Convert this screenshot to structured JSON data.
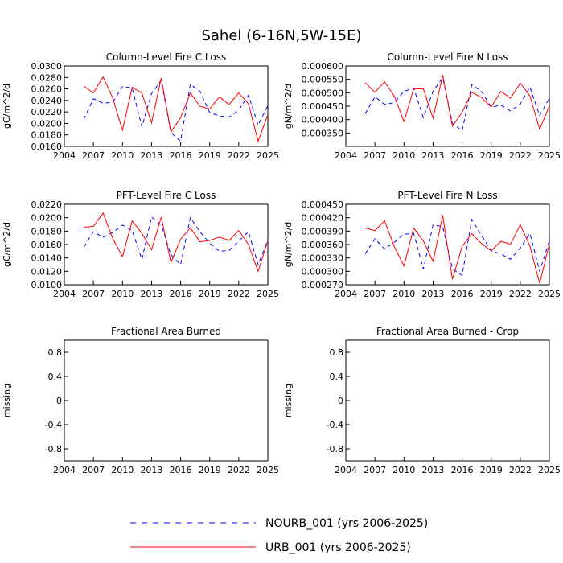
{
  "page_title": "Sahel (6-16N,5W-15E)",
  "legend": {
    "items": [
      {
        "label": "NOURB_001 (yrs 2006-2025)",
        "color": "#0000ff",
        "dash": "dashed"
      },
      {
        "label": "URB_001 (yrs 2006-2025)",
        "color": "#ff0000",
        "dash": "solid"
      }
    ]
  },
  "chart_data": [
    {
      "type": "line",
      "title": "Column-Level Fire C Loss",
      "ylabel": "gC/m^2/d",
      "xlabel": "",
      "xlim": [
        2004,
        2025
      ],
      "ylim": [
        0.016,
        0.03
      ],
      "xticks": [
        "2004",
        "2007",
        "2010",
        "2013",
        "2016",
        "2019",
        "2022",
        "2025"
      ],
      "yticks": [
        "0.0160",
        "0.0180",
        "0.0200",
        "0.0220",
        "0.0240",
        "0.0260",
        "0.0280",
        "0.0300"
      ],
      "x": [
        2006,
        2007,
        2008,
        2009,
        2010,
        2011,
        2012,
        2013,
        2014,
        2015,
        2016,
        2017,
        2018,
        2019,
        2020,
        2021,
        2022,
        2023,
        2024,
        2025
      ],
      "series": [
        {
          "name": "NOURB_001",
          "values": [
            0.0207,
            0.0243,
            0.0235,
            0.0237,
            0.0264,
            0.0262,
            0.0194,
            0.0252,
            0.0275,
            0.0184,
            0.0169,
            0.0268,
            0.0256,
            0.0219,
            0.0213,
            0.0211,
            0.0223,
            0.0249,
            0.0197,
            0.0231
          ]
        },
        {
          "name": "URB_001",
          "values": [
            0.0265,
            0.0253,
            0.0281,
            0.0244,
            0.0188,
            0.0263,
            0.0253,
            0.0201,
            0.0279,
            0.0185,
            0.021,
            0.0253,
            0.023,
            0.0225,
            0.0246,
            0.0233,
            0.0253,
            0.0234,
            0.0169,
            0.0215
          ]
        }
      ]
    },
    {
      "type": "line",
      "title": "Column-Level Fire N Loss",
      "ylabel": "gN/m^2/d",
      "xlabel": "",
      "xlim": [
        2004,
        2025
      ],
      "ylim": [
        0.0003,
        0.0006
      ],
      "xticks": [
        "2004",
        "2007",
        "2010",
        "2013",
        "2016",
        "2019",
        "2022",
        "2025"
      ],
      "yticks": [
        "0.000350",
        "0.000400",
        "0.000450",
        "0.000500",
        "0.000550",
        "0.000600"
      ],
      "x": [
        2006,
        2007,
        2008,
        2009,
        2010,
        2011,
        2012,
        2013,
        2014,
        2015,
        2016,
        2017,
        2018,
        2019,
        2020,
        2021,
        2022,
        2023,
        2024,
        2025
      ],
      "series": [
        {
          "name": "NOURB_001",
          "values": [
            0.000422,
            0.000485,
            0.000457,
            0.000463,
            0.000505,
            0.000518,
            0.000407,
            0.000505,
            0.000557,
            0.000386,
            0.000358,
            0.00053,
            0.000505,
            0.000446,
            0.000454,
            0.000432,
            0.000458,
            0.000521,
            0.000415,
            0.00048
          ]
        },
        {
          "name": "URB_001",
          "values": [
            0.000538,
            0.000502,
            0.000541,
            0.000488,
            0.000392,
            0.000515,
            0.000514,
            0.000405,
            0.000566,
            0.000375,
            0.000427,
            0.000502,
            0.000482,
            0.000447,
            0.000505,
            0.00048,
            0.000536,
            0.000488,
            0.000364,
            0.00045
          ]
        }
      ]
    },
    {
      "type": "line",
      "title": "PFT-Level Fire C Loss",
      "ylabel": "gC/m^2/d",
      "xlabel": "",
      "xlim": [
        2004,
        2025
      ],
      "ylim": [
        0.01,
        0.022
      ],
      "xticks": [
        "2004",
        "2007",
        "2010",
        "2013",
        "2016",
        "2019",
        "2022",
        "2025"
      ],
      "yticks": [
        "0.0100",
        "0.0120",
        "0.0140",
        "0.0160",
        "0.0180",
        "0.0200",
        "0.0220"
      ],
      "x": [
        2006,
        2007,
        2008,
        2009,
        2010,
        2011,
        2012,
        2013,
        2014,
        2015,
        2016,
        2017,
        2018,
        2019,
        2020,
        2021,
        2022,
        2023,
        2024,
        2025
      ],
      "series": [
        {
          "name": "NOURB_001",
          "values": [
            0.0156,
            0.0179,
            0.0171,
            0.0178,
            0.0189,
            0.0181,
            0.0138,
            0.0201,
            0.0189,
            0.0145,
            0.013,
            0.02,
            0.0179,
            0.0162,
            0.015,
            0.0151,
            0.0165,
            0.0179,
            0.013,
            0.0167
          ]
        },
        {
          "name": "URB_001",
          "values": [
            0.0186,
            0.0187,
            0.0207,
            0.0169,
            0.0142,
            0.0195,
            0.0177,
            0.0152,
            0.0201,
            0.0133,
            0.0168,
            0.0185,
            0.0164,
            0.0166,
            0.0171,
            0.0166,
            0.0181,
            0.016,
            0.012,
            0.0166
          ]
        }
      ]
    },
    {
      "type": "line",
      "title": "PFT-Level Fire N Loss",
      "ylabel": "gN/m^2/d",
      "xlabel": "",
      "xlim": [
        2004,
        2025
      ],
      "ylim": [
        0.00027,
        0.00045
      ],
      "xticks": [
        "2004",
        "2007",
        "2010",
        "2013",
        "2016",
        "2019",
        "2022",
        "2025"
      ],
      "yticks": [
        "0.000270",
        "0.000300",
        "0.000330",
        "0.000360",
        "0.000390",
        "0.000420",
        "0.000450"
      ],
      "x": [
        2006,
        2007,
        2008,
        2009,
        2010,
        2011,
        2012,
        2013,
        2014,
        2015,
        2016,
        2017,
        2018,
        2019,
        2020,
        2021,
        2022,
        2023,
        2024,
        2025
      ],
      "series": [
        {
          "name": "NOURB_001",
          "values": [
            0.000339,
            0.000373,
            0.00035,
            0.000365,
            0.000383,
            0.000385,
            0.000305,
            0.000404,
            0.0004,
            0.000306,
            0.000291,
            0.000416,
            0.00038,
            0.000346,
            0.000339,
            0.000327,
            0.000352,
            0.000385,
            0.0003,
            0.000368
          ]
        },
        {
          "name": "URB_001",
          "values": [
            0.000397,
            0.000391,
            0.000413,
            0.000355,
            0.000312,
            0.000397,
            0.000368,
            0.000322,
            0.000425,
            0.000282,
            0.000356,
            0.000384,
            0.000362,
            0.000346,
            0.000367,
            0.000361,
            0.000404,
            0.000356,
            0.000273,
            0.000361
          ]
        }
      ]
    },
    {
      "type": "line",
      "title": "Fractional Area Burned",
      "ylabel": "missing",
      "xlabel": "",
      "xlim": [
        2004,
        2025
      ],
      "ylim": [
        -1,
        1
      ],
      "xticks": [
        "2004",
        "2007",
        "2010",
        "2013",
        "2016",
        "2019",
        "2022",
        "2025"
      ],
      "yticks": [
        "-0.8",
        "-0.4",
        "0",
        "0.4",
        "0.8"
      ],
      "x": [],
      "series": []
    },
    {
      "type": "line",
      "title": "Fractional Area Burned - Crop",
      "ylabel": "missing",
      "xlabel": "",
      "xlim": [
        2004,
        2025
      ],
      "ylim": [
        -1,
        1
      ],
      "xticks": [
        "2004",
        "2007",
        "2010",
        "2013",
        "2016",
        "2019",
        "2022",
        "2025"
      ],
      "yticks": [
        "-0.8",
        "-0.4",
        "0",
        "0.4",
        "0.8"
      ],
      "x": [],
      "series": []
    }
  ]
}
